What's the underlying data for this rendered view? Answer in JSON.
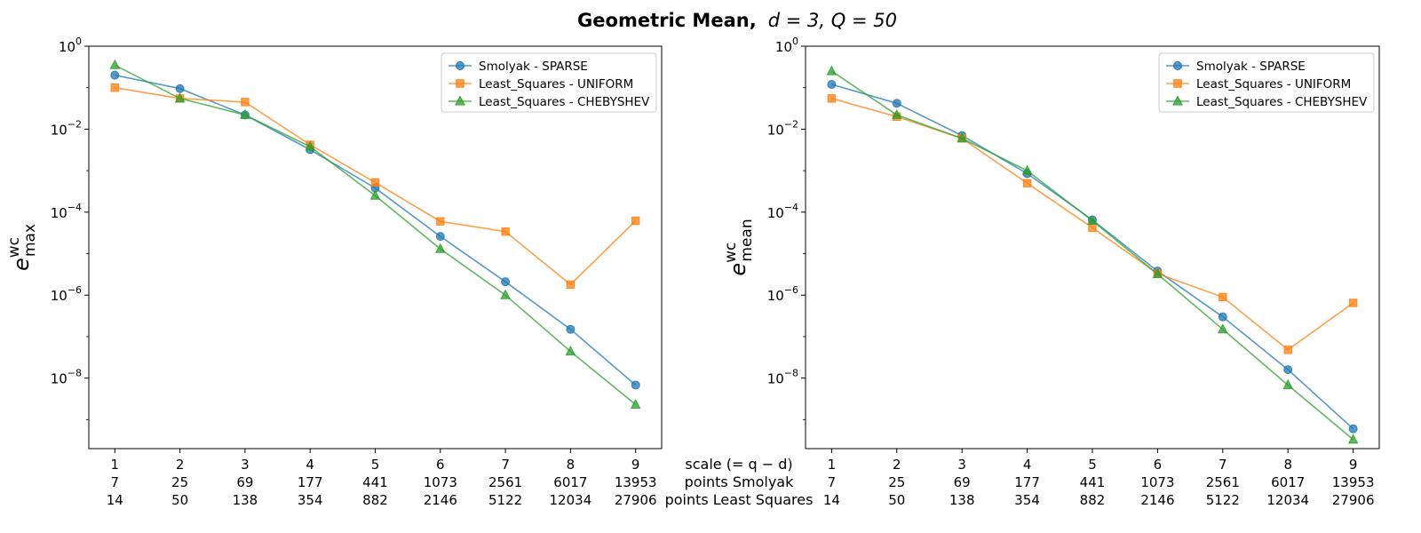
{
  "title": {
    "bold": "Geometric Mean,",
    "math": "d = 3, Q = 50"
  },
  "chart_data": [
    {
      "type": "line",
      "ylabel_base": "e",
      "ylabel_sup": "wc",
      "ylabel_sub": "max",
      "yscale": "log",
      "ylim": [
        2e-10,
        1
      ],
      "yticks": [
        {
          "value": 1,
          "base": "10",
          "exp": "0"
        },
        {
          "value": 0.01,
          "base": "10",
          "exp": "−2"
        },
        {
          "value": 0.0001,
          "base": "10",
          "exp": "−4"
        },
        {
          "value": 1e-06,
          "base": "10",
          "exp": "−6"
        },
        {
          "value": 1e-08,
          "base": "10",
          "exp": "−8"
        }
      ],
      "x": [
        1,
        2,
        3,
        4,
        5,
        6,
        7,
        8,
        9
      ],
      "xlim": [
        0.6,
        9.4
      ],
      "series": [
        {
          "name": "Smolyak - SPARSE",
          "color": "#1f77b4",
          "marker": "circle",
          "values": [
            0.2,
            0.095,
            0.022,
            0.0032,
            0.00038,
            2.6e-05,
            2.1e-06,
            1.5e-07,
            6.8e-09
          ]
        },
        {
          "name": "Least_Squares - UNIFORM",
          "color": "#ff7f0e",
          "marker": "square",
          "values": [
            0.1,
            0.055,
            0.045,
            0.0042,
            0.00052,
            6e-05,
            3.4e-05,
            1.8e-06,
            6.2e-05
          ]
        },
        {
          "name": "Least_Squares - CHEBYSHEV",
          "color": "#2ca02c",
          "marker": "triangle",
          "values": [
            0.35,
            0.055,
            0.022,
            0.0038,
            0.00025,
            1.3e-05,
            1e-06,
            4.4e-08,
            2.3e-09
          ]
        }
      ]
    },
    {
      "type": "line",
      "ylabel_base": "e",
      "ylabel_sup": "wc",
      "ylabel_sub": "mean",
      "yscale": "log",
      "ylim": [
        2e-10,
        1
      ],
      "yticks": [
        {
          "value": 1,
          "base": "10",
          "exp": "0"
        },
        {
          "value": 0.01,
          "base": "10",
          "exp": "−2"
        },
        {
          "value": 0.0001,
          "base": "10",
          "exp": "−4"
        },
        {
          "value": 1e-06,
          "base": "10",
          "exp": "−6"
        },
        {
          "value": 1e-08,
          "base": "10",
          "exp": "−8"
        }
      ],
      "x": [
        1,
        2,
        3,
        4,
        5,
        6,
        7,
        8,
        9
      ],
      "xlim": [
        0.6,
        9.4
      ],
      "series": [
        {
          "name": "Smolyak - SPARSE",
          "color": "#1f77b4",
          "marker": "circle",
          "values": [
            0.12,
            0.042,
            0.007,
            0.00085,
            6.5e-05,
            3.8e-06,
            3e-07,
            1.6e-08,
            6e-10
          ]
        },
        {
          "name": "Least_Squares - UNIFORM",
          "color": "#ff7f0e",
          "marker": "square",
          "values": [
            0.055,
            0.02,
            0.006,
            0.0005,
            4.2e-05,
            3.3e-06,
            9e-07,
            4.8e-08,
            6.5e-07
          ]
        },
        {
          "name": "Least_Squares - CHEBYSHEV",
          "color": "#2ca02c",
          "marker": "triangle",
          "values": [
            0.25,
            0.022,
            0.006,
            0.001,
            6.2e-05,
            3.2e-06,
            1.5e-07,
            6.8e-09,
            3.3e-10
          ]
        }
      ]
    }
  ],
  "xaxis_rows": {
    "labels": [
      "scale (= q − d)",
      "points Smolyak",
      "points Least Squares"
    ],
    "scale": [
      "1",
      "2",
      "3",
      "4",
      "5",
      "6",
      "7",
      "8",
      "9"
    ],
    "points_smolyak": [
      "7",
      "25",
      "69",
      "177",
      "441",
      "1073",
      "2561",
      "6017",
      "13953"
    ],
    "points_least_squares": [
      "14",
      "50",
      "138",
      "354",
      "882",
      "2146",
      "5122",
      "12034",
      "27906"
    ]
  }
}
